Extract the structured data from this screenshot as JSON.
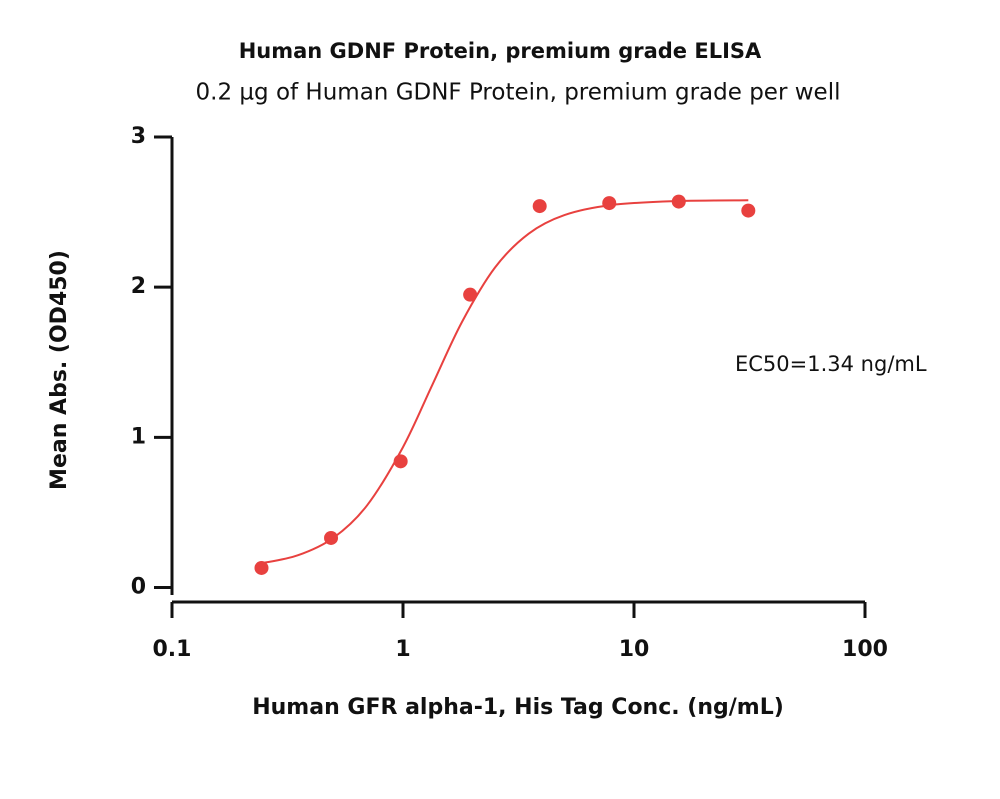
{
  "chart_data": {
    "type": "scatter",
    "title": "Human GDNF Protein, premium grade ELISA",
    "subtitle": "0.2 µg of Human GDNF Protein, premium grade per well",
    "x_label": "Human GFR alpha-1, His Tag Conc. (ng/mL)",
    "y_label": "Mean Abs. (OD450)",
    "annotation": "EC50=1.34 ng/mL",
    "x_scale": "log",
    "xlim": [
      0.1,
      100
    ],
    "xticks": [
      0.1,
      1,
      10,
      100
    ],
    "ylim": [
      -0.05,
      3
    ],
    "yticks": [
      0,
      1,
      2,
      3
    ],
    "grid": false,
    "series": [
      {
        "color": "#e8413f",
        "marker": "circle",
        "x": [
          0.244,
          0.488,
          0.977,
          1.953,
          3.906,
          7.813,
          15.625,
          31.25
        ],
        "values": [
          0.13,
          0.33,
          0.84,
          1.95,
          2.54,
          2.56,
          2.57,
          2.51
        ]
      },
      {
        "color": "#e8413f",
        "line": true,
        "x": [
          0.244,
          0.35,
          0.5,
          0.7,
          1,
          1.34,
          1.8,
          2.5,
          3.5,
          5,
          8,
          15,
          31.25
        ],
        "values": [
          0.161,
          0.214,
          0.331,
          0.548,
          0.935,
          1.35,
          1.768,
          2.13,
          2.356,
          2.48,
          2.547,
          2.573,
          2.579
        ]
      }
    ]
  }
}
